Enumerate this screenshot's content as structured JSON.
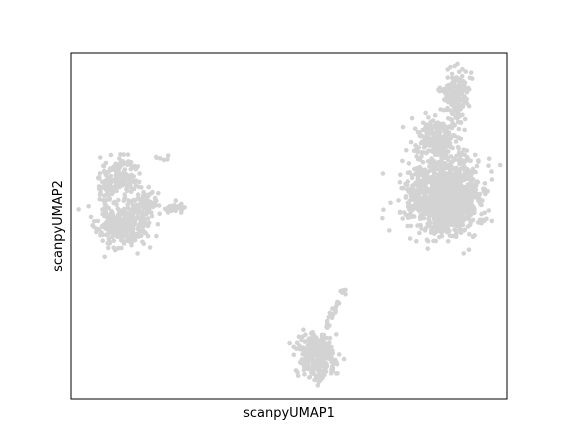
{
  "chart_data": {
    "type": "scatter",
    "title": "",
    "xlabel": "scanpyUMAP1",
    "ylabel": "scanpyUMAP2",
    "xlim": [
      0,
      100
    ],
    "ylim": [
      0,
      100
    ],
    "grid": false,
    "legend": "none",
    "point_color": "#d3d3d3",
    "x_ticks": [],
    "y_ticks": [],
    "series": [
      {
        "clusters": [
          {
            "shape": "gaussian",
            "seed": 11,
            "n": 320,
            "cx": 11.8,
            "cy": 50.2,
            "sx": 2.9,
            "sy": 3.2
          },
          {
            "shape": "gaussian",
            "seed": 12,
            "n": 140,
            "cx": 11.5,
            "cy": 64.5,
            "sx": 1.8,
            "sy": 2.6
          },
          {
            "shape": "gaussian",
            "seed": 13,
            "n": 70,
            "cx": 16.5,
            "cy": 56.5,
            "sx": 1.5,
            "sy": 2.2
          },
          {
            "shape": "gaussian",
            "seed": 14,
            "n": 45,
            "cx": 7.8,
            "cy": 61.5,
            "sx": 0.9,
            "sy": 2.5
          },
          {
            "shape": "gaussian",
            "seed": 15,
            "n": 28,
            "cx": 23.8,
            "cy": 55.2,
            "sx": 1.1,
            "sy": 1.0
          },
          {
            "shape": "gaussian",
            "seed": 16,
            "n": 6,
            "cx": 20.8,
            "cy": 69.5,
            "sx": 0.9,
            "sy": 0.7
          },
          {
            "shape": "gaussian",
            "seed": 17,
            "n": 1300,
            "cx": 85.5,
            "cy": 58.5,
            "sx": 4.1,
            "sy": 5.2
          },
          {
            "shape": "gaussian",
            "seed": 18,
            "n": 230,
            "cx": 83.8,
            "cy": 74.5,
            "sx": 2.4,
            "sy": 3.2
          },
          {
            "shape": "gaussian",
            "seed": 19,
            "n": 200,
            "cx": 88.0,
            "cy": 87.5,
            "sx": 1.6,
            "sy": 3.6
          },
          {
            "shape": "gaussian",
            "seed": 20,
            "n": 320,
            "cx": 56.5,
            "cy": 12.3,
            "sx": 2.0,
            "sy": 3.0
          },
          {
            "shape": "line",
            "seed": 21,
            "n": 26,
            "x1": 58.3,
            "y1": 19.8,
            "x2": 62.8,
            "y2": 32.0,
            "jitter": 0.35
          }
        ]
      }
    ]
  }
}
